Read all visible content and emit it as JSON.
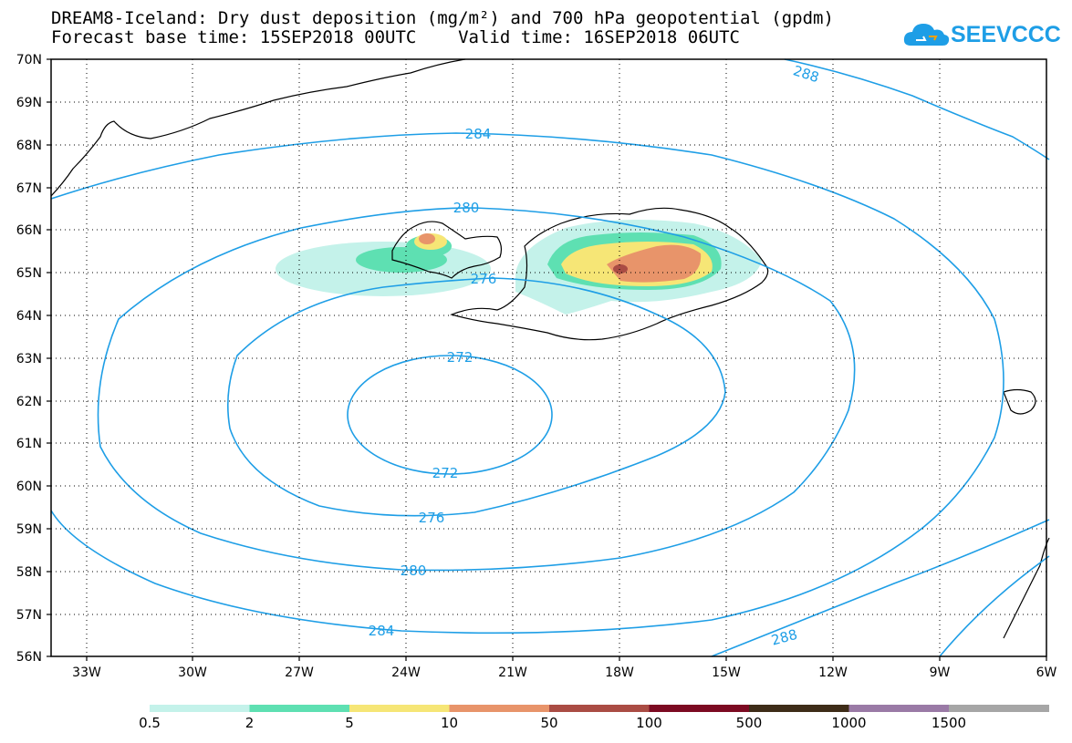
{
  "header": {
    "title_line1": "DREAM8-Iceland: Dry dust deposition (mg/m²) and 700 hPa geopotential (gpdm)",
    "title_line2": "Forecast base time: 15SEP2018 00UTC    Valid time: 16SEP2018 06UTC"
  },
  "logo": {
    "text": "SEEVCCC",
    "icon": "cloud-icon",
    "color": "#1e9ee6"
  },
  "map": {
    "lat_range": [
      56,
      70
    ],
    "lon_range": [
      -34.5,
      -6
    ],
    "lat_ticks": [
      "70N",
      "69N",
      "68N",
      "67N",
      "66N",
      "65N",
      "64N",
      "63N",
      "62N",
      "61N",
      "60N",
      "59N",
      "58N",
      "57N",
      "56N"
    ],
    "lon_ticks": [
      "33W",
      "30W",
      "27W",
      "24W",
      "21W",
      "18W",
      "15W",
      "12W",
      "9W",
      "6W"
    ],
    "grid": "dotted"
  },
  "contours": {
    "color": "#1e9ee6",
    "labels": [
      "288",
      "284",
      "280",
      "276",
      "272",
      "272",
      "276",
      "280",
      "284",
      "288"
    ]
  },
  "colorbar": {
    "colors": [
      "#c4f2ea",
      "#5ee0b2",
      "#f6e676",
      "#e8946a",
      "#aa4c44",
      "#7c0a22",
      "#3e2c18",
      "#9a7aa6",
      "#a6a6a6"
    ],
    "labels": [
      "0.5",
      "2",
      "5",
      "10",
      "50",
      "100",
      "500",
      "1000",
      "1500"
    ]
  }
}
